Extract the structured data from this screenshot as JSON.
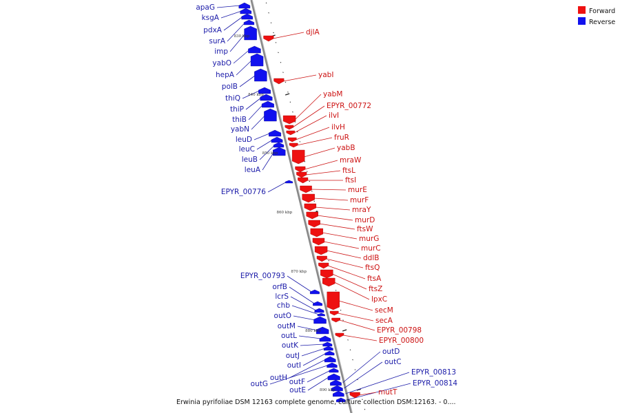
{
  "colors": {
    "forward": "#ee1111",
    "reverse": "#1111ee",
    "forward_label": "#cc1111",
    "reverse_label": "#1a1aa8",
    "axis": "#888888"
  },
  "legend": [
    {
      "label": "Forward",
      "strand": "forward"
    },
    {
      "label": "Reverse",
      "strand": "reverse"
    }
  ],
  "caption": "Erwinia pyrifoliae DSM 12163 complete genome, culture collection DSM:12163. - 0....",
  "scale_labels": [
    "830 kbp",
    "840 kbp",
    "850 kbp",
    "860 kbp",
    "870 kbp",
    "880 kbp",
    "890 kbp"
  ],
  "reverse_genes": [
    "apaG",
    "ksgA",
    "pdxA",
    "surA",
    "imp",
    "yabO",
    "hepA",
    "polB",
    "thiQ",
    "thiP",
    "thiB",
    "yabN",
    "leuD",
    "leuC",
    "leuB",
    "leuA",
    "EPYR_00776",
    "EPYR_00793",
    "orfB",
    "lcrS",
    "chb",
    "outO",
    "outM",
    "outL",
    "outK",
    "outJ",
    "outI",
    "outH",
    "outG",
    "outF",
    "outE",
    "outD",
    "outC",
    "EPYR_00813",
    "EPYR_00814"
  ],
  "forward_genes": [
    "djlA",
    "yabI",
    "yabM",
    "EPYR_00772",
    "ilvI",
    "ilvH",
    "fruR",
    "yabB",
    "mraW",
    "ftsL",
    "ftsI",
    "murE",
    "murF",
    "mraY",
    "murD",
    "ftsW",
    "murG",
    "murC",
    "ddlB",
    "ftsQ",
    "ftsA",
    "ftsZ",
    "lpxC",
    "secM",
    "secA",
    "EPYR_00798",
    "EPYR_00800",
    "mutT"
  ]
}
